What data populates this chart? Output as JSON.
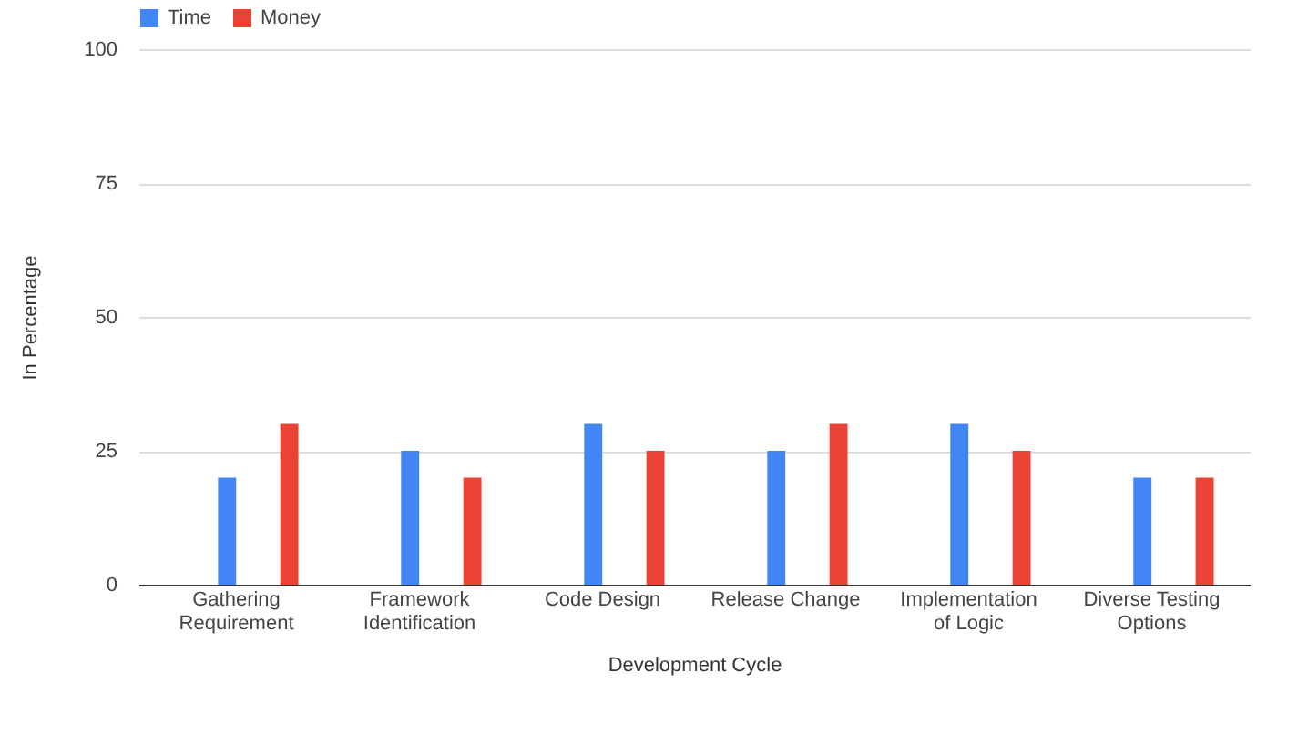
{
  "chart_data": {
    "type": "bar",
    "xlabel": "Development Cycle",
    "ylabel": "In Percentage",
    "categories": [
      "Gathering Requirement",
      "Framework Identification",
      "Code Design",
      "Release Change",
      "Implementation of Logic",
      "Diverse Testing Options"
    ],
    "series": [
      {
        "name": "Time",
        "color": "#4285f4",
        "values": [
          20,
          25,
          30,
          25,
          30,
          20
        ]
      },
      {
        "name": "Money",
        "color": "#ea4335",
        "values": [
          30,
          20,
          25,
          30,
          25,
          20
        ]
      }
    ],
    "ylim": [
      0,
      100
    ],
    "yticks": [
      0,
      25,
      50,
      75,
      100
    ],
    "grid": "y",
    "legend": "top"
  }
}
